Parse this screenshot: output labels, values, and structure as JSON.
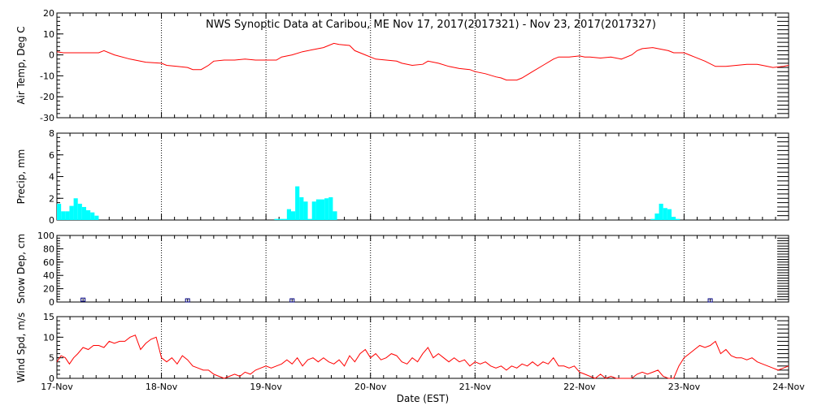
{
  "title": "NWS Synoptic Data at Caribou, ME    Nov 17, 2017(2017321) - Nov 23, 2017(2017327)",
  "xlabel": "Date (EST)",
  "x_ticks": [
    "17-Nov",
    "18-Nov",
    "19-Nov",
    "20-Nov",
    "21-Nov",
    "22-Nov",
    "23-Nov",
    "24-Nov"
  ],
  "colors": {
    "temp": "#ff0000",
    "precip": "#00ffff",
    "snow": "#000080",
    "wind": "#ff0000",
    "grid": "#000000"
  },
  "chart_data": [
    {
      "type": "line",
      "ylabel": "Air Temp, Deg C",
      "ylim": [
        -30,
        20
      ],
      "y_ticks": [
        "20",
        "10",
        "0",
        "-10",
        "-20",
        "-30"
      ],
      "x_unit": "days since 17-Nov 00:00 EST",
      "series": [
        {
          "points": [
            [
              0,
              1.5
            ],
            [
              0.06,
              1
            ],
            [
              0.25,
              1
            ],
            [
              0.4,
              1
            ],
            [
              0.45,
              2
            ],
            [
              0.55,
              0
            ],
            [
              0.7,
              -2
            ],
            [
              0.85,
              -3.5
            ],
            [
              1.0,
              -4
            ],
            [
              1.05,
              -5
            ],
            [
              1.15,
              -5.5
            ],
            [
              1.25,
              -6
            ],
            [
              1.3,
              -7
            ],
            [
              1.38,
              -7
            ],
            [
              1.45,
              -5
            ],
            [
              1.5,
              -3
            ],
            [
              1.6,
              -2.5
            ],
            [
              1.7,
              -2.5
            ],
            [
              1.8,
              -2
            ],
            [
              1.9,
              -2.5
            ],
            [
              2.0,
              -2.5
            ],
            [
              2.1,
              -2.5
            ],
            [
              2.15,
              -1
            ],
            [
              2.25,
              0
            ],
            [
              2.35,
              1.5
            ],
            [
              2.45,
              2.5
            ],
            [
              2.55,
              3.5
            ],
            [
              2.6,
              4.5
            ],
            [
              2.65,
              5.5
            ],
            [
              2.7,
              5
            ],
            [
              2.8,
              4.5
            ],
            [
              2.85,
              2
            ],
            [
              2.95,
              0
            ],
            [
              3.05,
              -2
            ],
            [
              3.15,
              -2.5
            ],
            [
              3.25,
              -3
            ],
            [
              3.3,
              -4
            ],
            [
              3.4,
              -5
            ],
            [
              3.5,
              -4.5
            ],
            [
              3.55,
              -3
            ],
            [
              3.65,
              -4
            ],
            [
              3.75,
              -5.5
            ],
            [
              3.85,
              -6.5
            ],
            [
              3.95,
              -7
            ],
            [
              4.0,
              -8
            ],
            [
              4.1,
              -9
            ],
            [
              4.2,
              -10.5
            ],
            [
              4.25,
              -11
            ],
            [
              4.3,
              -12
            ],
            [
              4.4,
              -12
            ],
            [
              4.45,
              -11
            ],
            [
              4.55,
              -8
            ],
            [
              4.65,
              -5
            ],
            [
              4.75,
              -2
            ],
            [
              4.8,
              -1
            ],
            [
              4.9,
              -1
            ],
            [
              5.0,
              -0.5
            ],
            [
              5.05,
              -1
            ],
            [
              5.1,
              -1
            ],
            [
              5.2,
              -1.5
            ],
            [
              5.3,
              -1
            ],
            [
              5.4,
              -2
            ],
            [
              5.5,
              0
            ],
            [
              5.55,
              2
            ],
            [
              5.6,
              3
            ],
            [
              5.7,
              3.5
            ],
            [
              5.8,
              2.5
            ],
            [
              5.85,
              2
            ],
            [
              5.9,
              1
            ],
            [
              6.0,
              1
            ],
            [
              6.05,
              0
            ],
            [
              6.1,
              -1
            ],
            [
              6.2,
              -3
            ],
            [
              6.3,
              -5.5
            ],
            [
              6.4,
              -5.5
            ],
            [
              6.5,
              -5
            ],
            [
              6.6,
              -4.5
            ],
            [
              6.7,
              -4.5
            ],
            [
              6.75,
              -5
            ],
            [
              6.85,
              -6
            ],
            [
              6.95,
              -5.5
            ],
            [
              7.0,
              -5
            ]
          ]
        }
      ]
    },
    {
      "type": "bar",
      "ylabel": "Precip, mm",
      "ylim": [
        0,
        8
      ],
      "y_ticks": [
        "8",
        "6",
        "4",
        "2",
        "0"
      ],
      "x_unit": "days since 17-Nov 00:00 EST",
      "bar_width": 0.04,
      "series": [
        {
          "points": [
            [
              0,
              1.5
            ],
            [
              0.04,
              0.8
            ],
            [
              0.08,
              0.8
            ],
            [
              0.12,
              1.3
            ],
            [
              0.16,
              2
            ],
            [
              0.2,
              1.5
            ],
            [
              0.24,
              1.2
            ],
            [
              0.28,
              0.9
            ],
            [
              0.32,
              0.7
            ],
            [
              0.36,
              0.4
            ],
            [
              2.08,
              0.1
            ],
            [
              2.12,
              0.1
            ],
            [
              2.16,
              0.1
            ],
            [
              2.2,
              1
            ],
            [
              2.24,
              0.8
            ],
            [
              2.28,
              3.1
            ],
            [
              2.32,
              2.1
            ],
            [
              2.36,
              1.7
            ],
            [
              2.4,
              0.1
            ],
            [
              2.44,
              1.7
            ],
            [
              2.48,
              1.9
            ],
            [
              2.52,
              1.9
            ],
            [
              2.56,
              2
            ],
            [
              2.6,
              2.1
            ],
            [
              2.64,
              0.8
            ],
            [
              5.68,
              0.1
            ],
            [
              5.72,
              0.6
            ],
            [
              5.76,
              1.5
            ],
            [
              5.8,
              1.1
            ],
            [
              5.84,
              1
            ],
            [
              5.88,
              0.3
            ],
            [
              5.92,
              0.1
            ]
          ]
        }
      ]
    },
    {
      "type": "scatter",
      "ylabel": "Snow Dep, cm",
      "ylim": [
        0,
        100
      ],
      "y_ticks": [
        "100",
        "80",
        "60",
        "40",
        "20",
        "0"
      ],
      "x_unit": "days since 17-Nov 00:00 EST",
      "series": [
        {
          "points": [
            [
              0.25,
              1
            ],
            [
              1.25,
              0
            ],
            [
              2.25,
              0
            ],
            [
              6.25,
              0
            ]
          ]
        }
      ]
    },
    {
      "type": "line",
      "ylabel": "Wind Spd, m/s",
      "ylim": [
        0,
        15
      ],
      "y_ticks": [
        "15",
        "10",
        "5",
        "0"
      ],
      "x_unit": "days since 17-Nov 00:00 EST",
      "series": [
        {
          "points": [
            [
              0,
              4
            ],
            [
              0.04,
              5.5
            ],
            [
              0.08,
              5
            ],
            [
              0.12,
              3.5
            ],
            [
              0.16,
              5
            ],
            [
              0.2,
              6
            ],
            [
              0.25,
              7.5
            ],
            [
              0.3,
              7
            ],
            [
              0.35,
              8
            ],
            [
              0.4,
              8
            ],
            [
              0.45,
              7.5
            ],
            [
              0.5,
              9
            ],
            [
              0.55,
              8.5
            ],
            [
              0.6,
              9
            ],
            [
              0.65,
              9
            ],
            [
              0.7,
              10
            ],
            [
              0.75,
              10.5
            ],
            [
              0.8,
              7
            ],
            [
              0.85,
              8.5
            ],
            [
              0.9,
              9.5
            ],
            [
              0.95,
              10
            ],
            [
              1.0,
              5
            ],
            [
              1.05,
              4
            ],
            [
              1.1,
              5
            ],
            [
              1.15,
              3.5
            ],
            [
              1.2,
              5.5
            ],
            [
              1.25,
              4.5
            ],
            [
              1.3,
              3
            ],
            [
              1.35,
              2.5
            ],
            [
              1.4,
              2
            ],
            [
              1.45,
              2
            ],
            [
              1.5,
              1
            ],
            [
              1.55,
              0.5
            ],
            [
              1.6,
              0
            ],
            [
              1.65,
              0.5
            ],
            [
              1.7,
              1
            ],
            [
              1.75,
              0.5
            ],
            [
              1.8,
              1.5
            ],
            [
              1.85,
              1
            ],
            [
              1.9,
              2
            ],
            [
              1.95,
              2.5
            ],
            [
              2.0,
              3
            ],
            [
              2.05,
              2.5
            ],
            [
              2.1,
              3
            ],
            [
              2.15,
              3.5
            ],
            [
              2.2,
              4.5
            ],
            [
              2.25,
              3.5
            ],
            [
              2.3,
              5
            ],
            [
              2.35,
              3
            ],
            [
              2.4,
              4.5
            ],
            [
              2.45,
              5
            ],
            [
              2.5,
              4
            ],
            [
              2.55,
              5
            ],
            [
              2.6,
              4
            ],
            [
              2.65,
              3.5
            ],
            [
              2.7,
              4.5
            ],
            [
              2.75,
              3
            ],
            [
              2.8,
              5.5
            ],
            [
              2.85,
              4
            ],
            [
              2.9,
              6
            ],
            [
              2.95,
              7
            ],
            [
              3.0,
              5
            ],
            [
              3.05,
              6
            ],
            [
              3.1,
              4.5
            ],
            [
              3.15,
              5
            ],
            [
              3.2,
              6
            ],
            [
              3.25,
              5.5
            ],
            [
              3.3,
              4
            ],
            [
              3.35,
              3.5
            ],
            [
              3.4,
              5
            ],
            [
              3.45,
              4
            ],
            [
              3.5,
              6
            ],
            [
              3.55,
              7.5
            ],
            [
              3.6,
              5
            ],
            [
              3.65,
              6
            ],
            [
              3.7,
              5
            ],
            [
              3.75,
              4
            ],
            [
              3.8,
              5
            ],
            [
              3.85,
              4
            ],
            [
              3.9,
              4.5
            ],
            [
              3.95,
              3
            ],
            [
              4.0,
              4
            ],
            [
              4.05,
              3.5
            ],
            [
              4.1,
              4
            ],
            [
              4.15,
              3
            ],
            [
              4.2,
              2.5
            ],
            [
              4.25,
              3
            ],
            [
              4.3,
              2
            ],
            [
              4.35,
              3
            ],
            [
              4.4,
              2.5
            ],
            [
              4.45,
              3.5
            ],
            [
              4.5,
              3
            ],
            [
              4.55,
              4
            ],
            [
              4.6,
              3
            ],
            [
              4.65,
              4
            ],
            [
              4.7,
              3.5
            ],
            [
              4.75,
              5
            ],
            [
              4.8,
              3
            ],
            [
              4.85,
              3
            ],
            [
              4.9,
              2.5
            ],
            [
              4.95,
              3
            ],
            [
              5.0,
              1.5
            ],
            [
              5.05,
              1
            ],
            [
              5.1,
              0.5
            ],
            [
              5.15,
              0
            ],
            [
              5.2,
              1
            ],
            [
              5.25,
              0
            ],
            [
              5.3,
              0.5
            ],
            [
              5.35,
              0
            ],
            [
              5.4,
              0
            ],
            [
              5.45,
              0
            ],
            [
              5.5,
              0
            ],
            [
              5.55,
              1
            ],
            [
              5.6,
              1.5
            ],
            [
              5.65,
              1
            ],
            [
              5.7,
              1.5
            ],
            [
              5.75,
              2
            ],
            [
              5.8,
              0.5
            ],
            [
              5.85,
              0
            ],
            [
              5.9,
              0
            ],
            [
              5.95,
              3
            ],
            [
              6.0,
              5
            ],
            [
              6.05,
              6
            ],
            [
              6.1,
              7
            ],
            [
              6.15,
              8
            ],
            [
              6.2,
              7.5
            ],
            [
              6.25,
              8
            ],
            [
              6.3,
              9
            ],
            [
              6.35,
              6
            ],
            [
              6.4,
              7
            ],
            [
              6.45,
              5.5
            ],
            [
              6.5,
              5
            ],
            [
              6.55,
              5
            ],
            [
              6.6,
              4.5
            ],
            [
              6.65,
              5
            ],
            [
              6.7,
              4
            ],
            [
              6.75,
              3.5
            ],
            [
              6.8,
              3
            ],
            [
              6.85,
              2.5
            ],
            [
              6.9,
              2
            ],
            [
              6.95,
              2.5
            ],
            [
              7.0,
              3
            ]
          ]
        }
      ]
    }
  ]
}
